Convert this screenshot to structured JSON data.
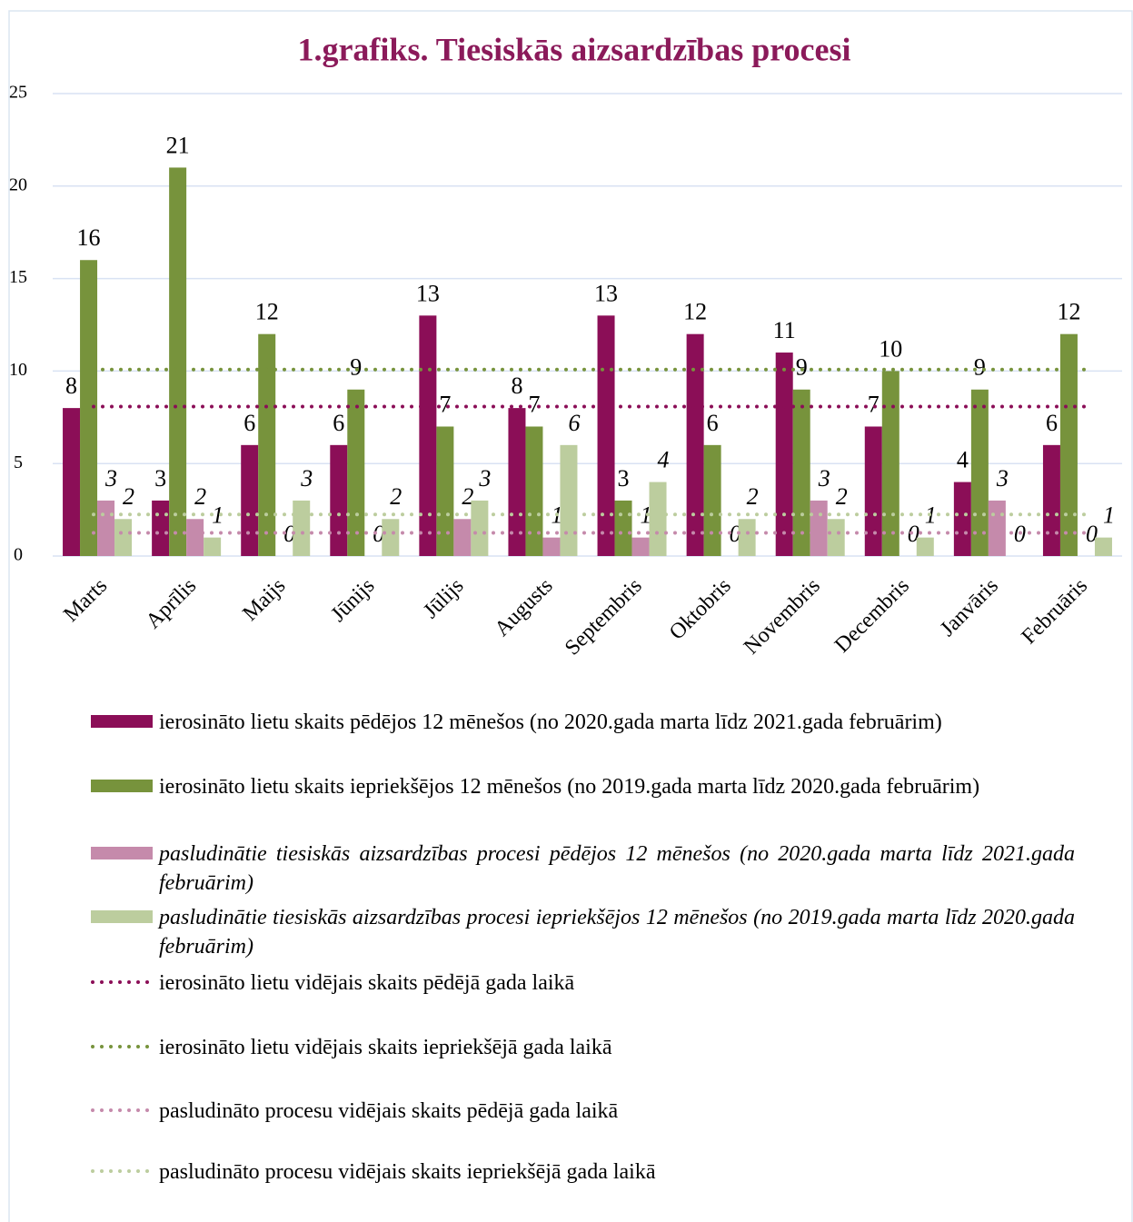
{
  "chart_data": {
    "type": "bar",
    "title": "1.grafiks. Tiesiskās aizsardzības procesi",
    "categories": [
      "Marts",
      "Aprīlis",
      "Maijs",
      "Jūnijs",
      "Jūlijs",
      "Augusts",
      "Septembris",
      "Oktobris",
      "Novembris",
      "Decembris",
      "Janvāris",
      "Februāris"
    ],
    "series": [
      {
        "name": "ierosināto lietu skaits pēdējos 12 mēnešos (no 2020.gada marta līdz 2021.gada februārim)",
        "color": "#8b0e57",
        "italic": false,
        "values": [
          8,
          3,
          6,
          6,
          13,
          8,
          13,
          12,
          11,
          7,
          4,
          6
        ]
      },
      {
        "name": "ierosināto lietu skaits iepriekšējos 12 mēnešos (no 2019.gada marta līdz 2020.gada februārim)",
        "color": "#77933c",
        "italic": false,
        "values": [
          16,
          21,
          12,
          9,
          7,
          7,
          3,
          6,
          9,
          10,
          9,
          12
        ]
      },
      {
        "name": "pasludinātie tiesiskās aizsardzības procesi pēdējos 12 mēnešos (no 2020.gada marta līdz 2021.gada februārim)",
        "color": "#c58aab",
        "italic": true,
        "values": [
          3,
          2,
          0,
          0,
          2,
          1,
          1,
          0,
          3,
          0,
          3,
          0
        ]
      },
      {
        "name": "pasludinātie tiesiskās aizsardzības procesi iepriekšējos 12 mēnešos (no 2019.gada marta līdz 2020.gada februārim)",
        "color": "#bccd9e",
        "italic": true,
        "values": [
          2,
          1,
          3,
          2,
          3,
          6,
          4,
          2,
          2,
          1,
          0,
          1
        ]
      }
    ],
    "average_lines": [
      {
        "name": "ierosināto lietu vidējais skaits pēdējā gada laikā",
        "color": "#8b0e57",
        "value": 8.08
      },
      {
        "name": "ierosināto lietu vidējais skaits iepriekšējā gada laikā",
        "color": "#77933c",
        "value": 10.08
      },
      {
        "name": "pasludināto procesu vidējais skaits pēdējā gada laikā",
        "color": "#c58aab",
        "value": 1.25
      },
      {
        "name": "pasludināto procesu vidējais skaits iepriekšējā gada laikā",
        "color": "#bccd9e",
        "value": 2.25
      }
    ],
    "ylim": [
      0,
      25
    ],
    "yticks": [
      0,
      5,
      10,
      15,
      20,
      25
    ],
    "grid": true
  }
}
